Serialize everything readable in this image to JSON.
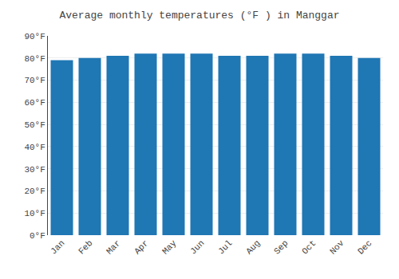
{
  "chart_data": {
    "type": "bar",
    "title": "Average monthly temperatures (°F ) in Manggar",
    "categories": [
      "Jan",
      "Feb",
      "Mar",
      "Apr",
      "May",
      "Jun",
      "Jul",
      "Aug",
      "Sep",
      "Oct",
      "Nov",
      "Dec"
    ],
    "values": [
      79,
      80,
      81,
      82,
      82,
      82,
      81,
      81,
      82,
      82,
      81,
      80
    ],
    "ylim": [
      0,
      90
    ],
    "yticks": [
      {
        "value": 0,
        "label": "0°F"
      },
      {
        "value": 10,
        "label": "10°F"
      },
      {
        "value": 20,
        "label": "20°F"
      },
      {
        "value": 30,
        "label": "30°F"
      },
      {
        "value": 40,
        "label": "40°F"
      },
      {
        "value": 50,
        "label": "50°F"
      },
      {
        "value": 60,
        "label": "60°F"
      },
      {
        "value": 70,
        "label": "70°F"
      },
      {
        "value": 80,
        "label": "80°F"
      },
      {
        "value": 90,
        "label": "90°F"
      }
    ],
    "grid": true
  }
}
